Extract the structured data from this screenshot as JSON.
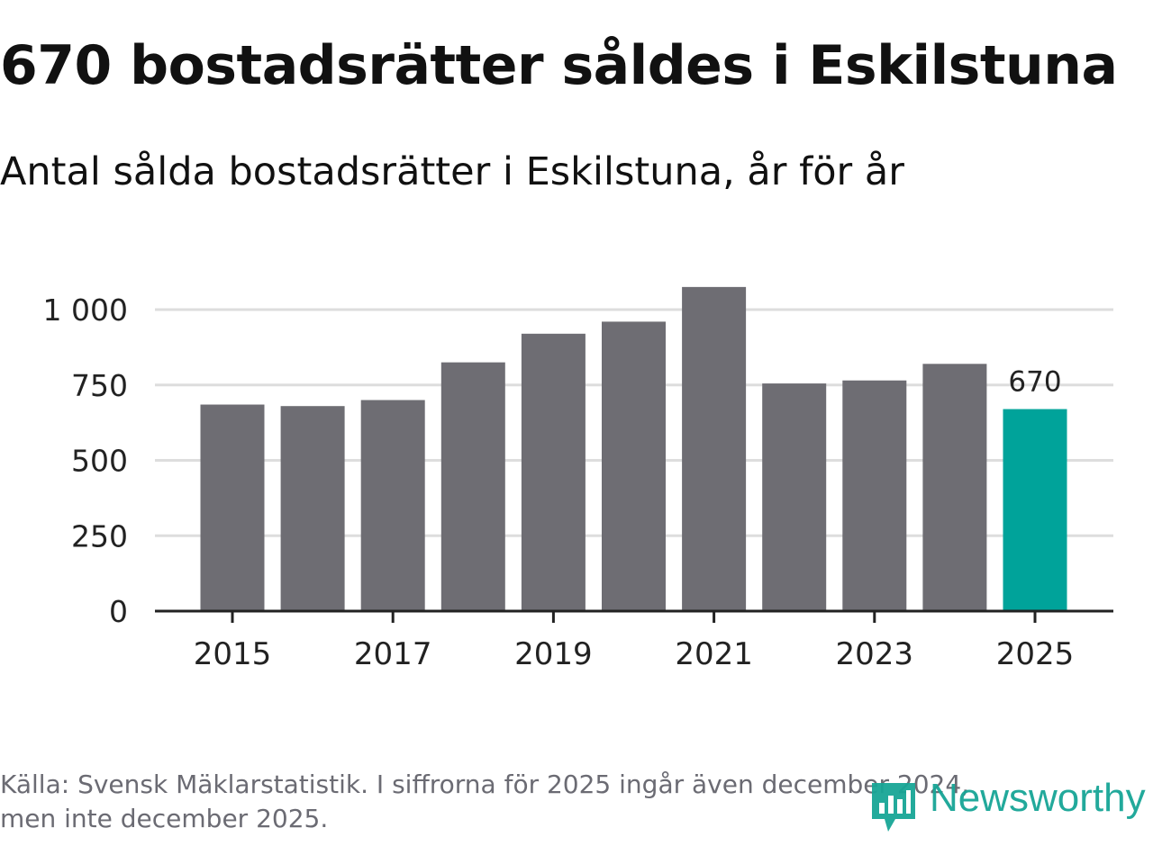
{
  "header": {
    "title": "670 bostadsrätter såldes i Eskilstuna",
    "subtitle": "Antal sålda bostadsrätter i Eskilstuna, år för år"
  },
  "footer": {
    "source_line1": "Källa: Svensk Mäklarstatistik. I siffrorna för 2025 ingår även december 2024,",
    "source_line2": "men inte december 2025.",
    "logo_text": "Newsworthy",
    "logo_icon": "newsworthy-logo-icon"
  },
  "colors": {
    "bar": "#6e6d73",
    "highlight": "#00a39a",
    "grid": "#dddddd",
    "axis": "#222222",
    "text": "#222222",
    "logo": "#17a596"
  },
  "chart_data": {
    "type": "bar",
    "title": "",
    "xlabel": "",
    "ylabel": "",
    "categories": [
      "2015",
      "2016",
      "2017",
      "2018",
      "2019",
      "2020",
      "2021",
      "2022",
      "2023",
      "2024",
      "2025"
    ],
    "values": [
      685,
      680,
      700,
      825,
      920,
      960,
      1075,
      755,
      765,
      820,
      670
    ],
    "highlight_index": 10,
    "data_labels": [
      {
        "index": 10,
        "text": "670"
      }
    ],
    "ylim": [
      0,
      1000
    ],
    "yticks": [
      0,
      250,
      500,
      750,
      1000
    ],
    "ytick_labels": [
      "0",
      "250",
      "500",
      "750",
      "1 000"
    ],
    "xtick_labels": [
      "2015",
      "2017",
      "2019",
      "2021",
      "2023",
      "2025"
    ],
    "grid": "horizontal",
    "legend": "none"
  }
}
